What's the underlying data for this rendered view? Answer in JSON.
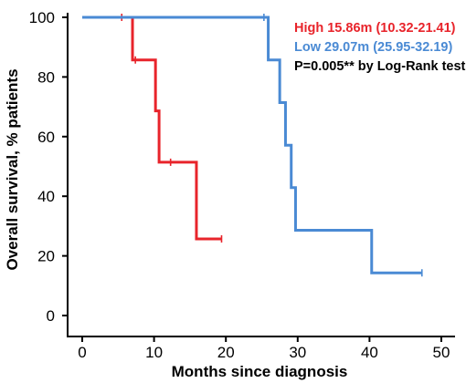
{
  "chart_data": {
    "type": "line",
    "subtype": "kaplan-meier",
    "xlabel": "Months since diagnosis",
    "ylabel": "Overall survival, % patients",
    "xlim": [
      0,
      50
    ],
    "ylim": [
      0,
      100
    ],
    "xticks": [
      0,
      10,
      20,
      30,
      40,
      50
    ],
    "yticks": [
      0,
      20,
      40,
      60,
      80,
      100
    ],
    "grid": false,
    "legend_position": "top-right",
    "annotation": "P=0.005** by Log-Rank test",
    "series": [
      {
        "name": "High 15.86m (10.32-21.41)",
        "color": "#e8242b",
        "steps": [
          [
            0,
            100
          ],
          [
            7,
            100
          ],
          [
            7,
            85.7
          ],
          [
            10.2,
            85.7
          ],
          [
            10.2,
            68.6
          ],
          [
            10.7,
            68.6
          ],
          [
            10.7,
            51.4
          ],
          [
            15.9,
            51.4
          ],
          [
            15.9,
            25.7
          ],
          [
            19.4,
            25.7
          ]
        ],
        "censored": [
          [
            5.5,
            100
          ],
          [
            7.4,
            85.7
          ],
          [
            12.3,
            51.4
          ],
          [
            19.4,
            25.7
          ]
        ]
      },
      {
        "name": "Low 29.07m (25.95-32.19)",
        "color": "#4a8ad4",
        "steps": [
          [
            0,
            100
          ],
          [
            25.9,
            100
          ],
          [
            25.9,
            85.7
          ],
          [
            27.5,
            85.7
          ],
          [
            27.5,
            71.4
          ],
          [
            28.3,
            71.4
          ],
          [
            28.3,
            57.1
          ],
          [
            29.1,
            57.1
          ],
          [
            29.1,
            42.9
          ],
          [
            29.7,
            42.9
          ],
          [
            29.7,
            28.6
          ],
          [
            40.3,
            28.6
          ],
          [
            40.3,
            14.3
          ],
          [
            47.3,
            14.3
          ]
        ],
        "censored": [
          [
            25.3,
            100
          ],
          [
            47.3,
            14.3
          ]
        ]
      }
    ]
  }
}
